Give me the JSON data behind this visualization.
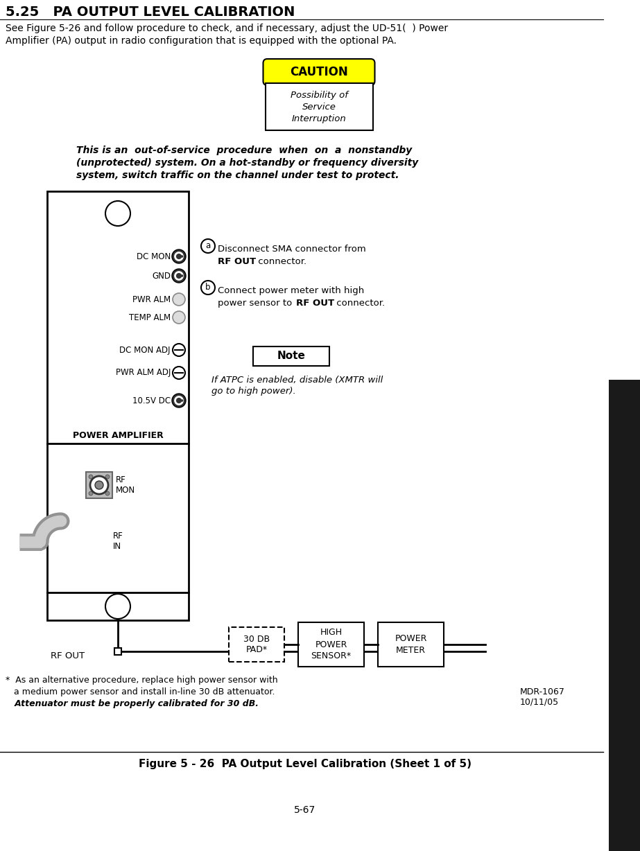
{
  "title": "5.25   PA OUTPUT LEVEL CALIBRATION",
  "intro_line1": "See Figure 5-26 and follow procedure to check, and if necessary, adjust the UD-51(  ) Power",
  "intro_line2": "Amplifier (PA) output in radio configuration that is equipped with the optional PA.",
  "caution_title": "CAUTION",
  "caution_body": "Possibility of\nService\nInterruption",
  "caution_italic_line1": "This is an  out-of-service  procedure  when  on  a  nonstandby",
  "caution_italic_line2": "(unprotected) system. On a hot-standby or frequency diversity",
  "caution_italic_line3": "system, switch traffic on the channel under test to protect.",
  "step_a_normal": "Disconnect SMA connector from",
  "step_a_bold": "RF OUT",
  "step_a_end": " connector.",
  "step_b_normal": "Connect power meter with high",
  "step_b_bold": "RF OUT",
  "step_b_normal2": "power sensor to ",
  "step_b_end": " connector.",
  "note_text_line1": "If ATPC is enabled, disable (XMTR will",
  "note_text_line2": "go to high power).",
  "label_dc_mon": "DC MON",
  "label_gnd": "GND",
  "label_pwr_alm": "PWR ALM",
  "label_temp_alm": "TEMP ALM",
  "label_dc_mon_adj": "DC MON ADJ",
  "label_pwr_alm_adj": "PWR ALM ADJ",
  "label_10v5dc": "10.5V DC",
  "label_power_amp": "POWER AMPLIFIER",
  "label_rf_mon": "RF\nMON",
  "label_rf_in": "RF\nIN",
  "label_rf_out": "RF OUT",
  "label_30db": "30 DB\nPAD*",
  "label_high_power": "HIGH\nPOWER\nSENSOR*",
  "label_power_meter": "POWER\nMETER",
  "footnote_line1": "*  As an alternative procedure, replace high power sensor with",
  "footnote_line2": "   a medium power sensor and install in-line 30 dB attenuator.",
  "footnote_bold": "   Attenuator must be properly calibrated for 30 dB.",
  "mdr_text": "MDR-1067\n10/11/05",
  "figure_caption": "Figure 5 - 26  PA Output Level Calibration (Sheet 1 of 5)",
  "page_number": "5-67",
  "bg_color": "#ffffff",
  "dark_sidebar_color": "#1a1a1a",
  "caution_header_bg": "#ffff00",
  "panel_border_color": "#000000"
}
